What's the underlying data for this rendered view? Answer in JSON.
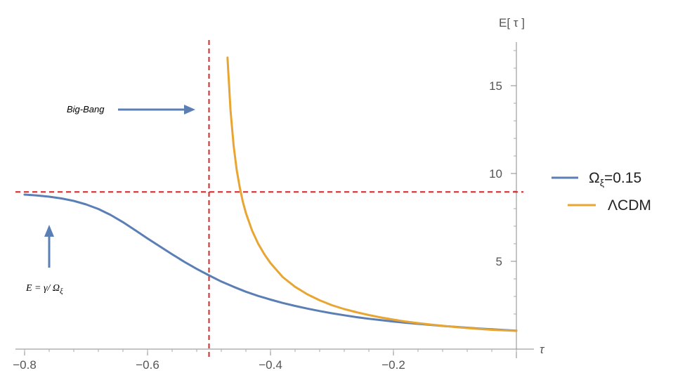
{
  "chart_data": {
    "type": "line",
    "xlabel": "τ",
    "ylabel": "E[ τ ]",
    "xlim": [
      -0.82,
      0.0
    ],
    "ylim": [
      0.8,
      17.5
    ],
    "xticks": [
      -0.8,
      -0.6,
      -0.4,
      -0.2
    ],
    "xtick_labels": [
      "−0.8",
      "−0.6",
      "−0.4",
      "−0.2"
    ],
    "yticks": [
      5,
      10,
      15
    ],
    "ytick_labels": [
      "5",
      "10",
      "15"
    ],
    "series": [
      {
        "name": "Ω_ξ=0.15",
        "color": "#5b7fb5",
        "x": [
          -0.8,
          -0.78,
          -0.76,
          -0.74,
          -0.72,
          -0.7,
          -0.68,
          -0.66,
          -0.64,
          -0.62,
          -0.6,
          -0.58,
          -0.56,
          -0.54,
          -0.52,
          -0.5,
          -0.48,
          -0.46,
          -0.44,
          -0.42,
          -0.4,
          -0.38,
          -0.36,
          -0.34,
          -0.32,
          -0.3,
          -0.28,
          -0.26,
          -0.24,
          -0.22,
          -0.2,
          -0.18,
          -0.16,
          -0.14,
          -0.12,
          -0.1,
          -0.08,
          -0.06,
          -0.04,
          -0.02,
          0.0
        ],
        "y": [
          8.8,
          8.75,
          8.68,
          8.58,
          8.44,
          8.24,
          7.98,
          7.64,
          7.23,
          6.77,
          6.3,
          5.85,
          5.4,
          4.97,
          4.57,
          4.2,
          3.85,
          3.55,
          3.27,
          3.03,
          2.82,
          2.63,
          2.46,
          2.31,
          2.17,
          2.04,
          1.93,
          1.82,
          1.73,
          1.65,
          1.57,
          1.5,
          1.44,
          1.38,
          1.32,
          1.27,
          1.22,
          1.17,
          1.13,
          1.09,
          1.05
        ]
      },
      {
        "name": "ΛCDM",
        "color": "#e8a532",
        "x": [
          -0.47,
          -0.465,
          -0.46,
          -0.455,
          -0.45,
          -0.445,
          -0.44,
          -0.43,
          -0.42,
          -0.41,
          -0.4,
          -0.38,
          -0.36,
          -0.34,
          -0.32,
          -0.3,
          -0.28,
          -0.26,
          -0.24,
          -0.22,
          -0.2,
          -0.18,
          -0.16,
          -0.14,
          -0.12,
          -0.1,
          -0.08,
          -0.06,
          -0.04,
          -0.02,
          0.0
        ],
        "y": [
          16.6,
          13.6,
          11.6,
          10.2,
          9.2,
          8.4,
          7.75,
          6.75,
          6.0,
          5.4,
          4.9,
          4.1,
          3.55,
          3.12,
          2.78,
          2.5,
          2.28,
          2.1,
          1.94,
          1.8,
          1.68,
          1.57,
          1.48,
          1.4,
          1.33,
          1.26,
          1.2,
          1.15,
          1.1,
          1.07,
          1.04
        ]
      }
    ],
    "reference_lines": [
      {
        "orientation": "vertical",
        "value": -0.5,
        "color": "#e02020",
        "style": "dashed"
      },
      {
        "orientation": "horizontal",
        "value": 8.95,
        "color": "#e02020",
        "style": "dashed"
      }
    ],
    "annotations": [
      {
        "text": "Big-Bang"
      },
      {
        "text": "E = γ/ Ω",
        "subscript": "ξ"
      }
    ],
    "legend": {
      "placement": "right",
      "entries": [
        {
          "label": "Ω",
          "subscript": "ξ",
          "suffix": "=0.15",
          "color": "#5b7fb5"
        },
        {
          "label": "ΛCDM",
          "subscript": "",
          "suffix": "",
          "color": "#e8a532"
        }
      ]
    }
  }
}
